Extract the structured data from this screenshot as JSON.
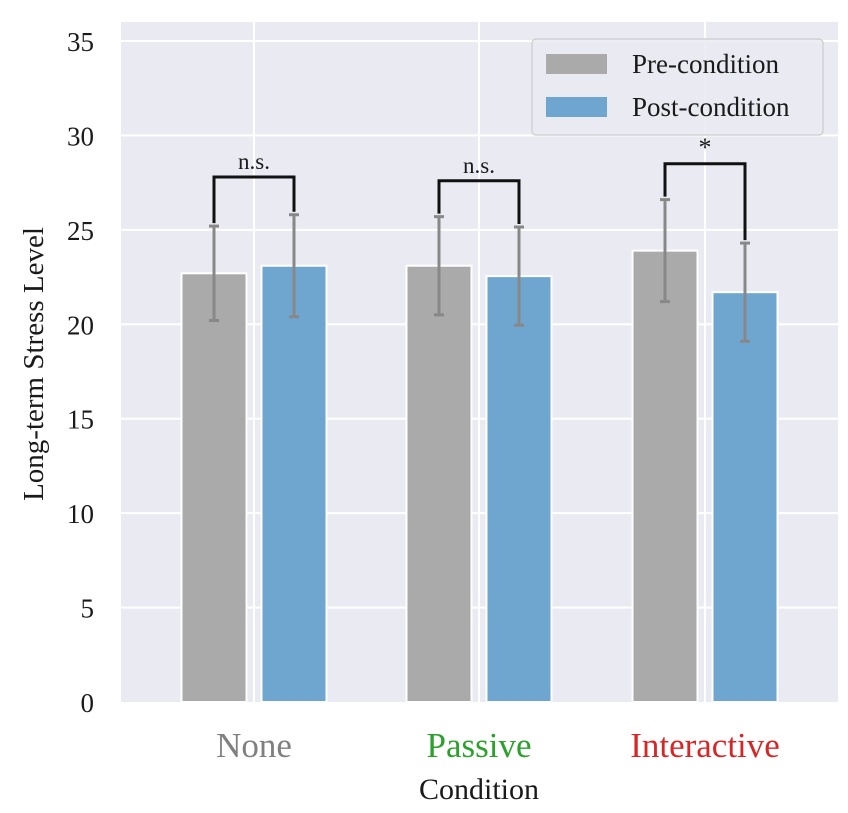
{
  "chart_data": {
    "type": "bar",
    "xlabel": "Condition",
    "ylabel": "Long-term Stress Level",
    "ylim": [
      0,
      35
    ],
    "yticks": [
      0,
      5,
      10,
      15,
      20,
      25,
      30,
      35
    ],
    "categories": [
      "None",
      "Passive",
      "Interactive"
    ],
    "category_colors": [
      "#808080",
      "#2ca02c",
      "#d62728"
    ],
    "series": [
      {
        "name": "Pre-condition",
        "color": "#aaaaaa",
        "values": [
          22.7,
          23.1,
          23.9
        ],
        "error": [
          2.5,
          2.6,
          2.7
        ]
      },
      {
        "name": "Post-condition",
        "color": "#6ea6d0",
        "values": [
          23.1,
          22.55,
          21.7
        ],
        "error": [
          2.7,
          2.6,
          2.6
        ]
      }
    ],
    "significance": [
      {
        "category": "None",
        "label": "n.s.",
        "level": 27.8
      },
      {
        "category": "Passive",
        "label": "n.s.",
        "level": 27.6
      },
      {
        "category": "Interactive",
        "label": "*",
        "level": 28.5
      }
    ],
    "grid": true,
    "legend": "top-right",
    "plot_background": "#eaeaf2",
    "error_color": "#888888"
  }
}
